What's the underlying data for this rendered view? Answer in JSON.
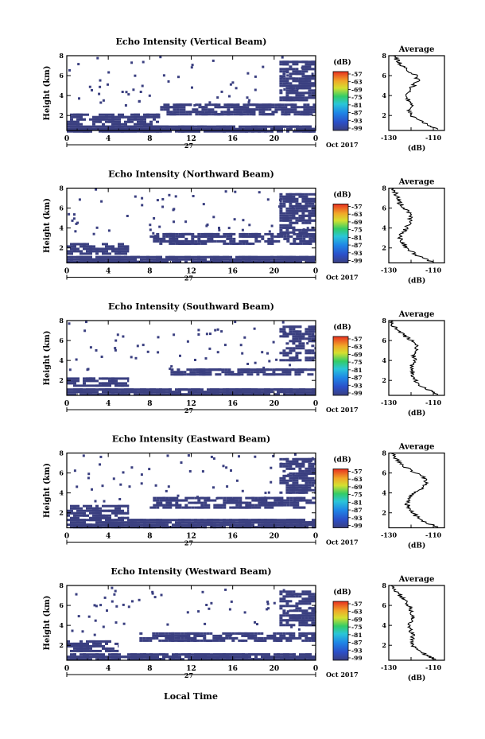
{
  "figure": {
    "xlabel_bottom": "Local Time",
    "colorbar_unit": "(dB)",
    "colorbar_ticks": [
      "-57",
      "-63",
      "-69",
      "-75",
      "-81",
      "-87",
      "-93",
      "-99"
    ],
    "avg_title": "Average",
    "avg_xlabel": "(dB)",
    "avg_xticks": [
      "-130",
      "-110"
    ],
    "date_label": "27",
    "month_label": "Oct 2017",
    "colors": {
      "high": "#e83020",
      "mid": "#33cc66",
      "low": "#3a3f80"
    }
  },
  "chart_data": [
    {
      "type": "heatmap",
      "title": "Echo Intensity (Vertical Beam)",
      "ylabel": "Height (km)",
      "x_ticks": [
        "0",
        "4",
        "8",
        "12",
        "16",
        "20",
        "0"
      ],
      "y_ticks": [
        "2",
        "4",
        "6",
        "8"
      ],
      "xlim": [
        0,
        24
      ],
      "ylim": [
        0.5,
        8
      ],
      "echo_layers_km": [
        {
          "x0": 0,
          "x1": 24,
          "y0": 0.5,
          "y1": 1.0
        },
        {
          "x0": 0,
          "x1": 9,
          "y0": 1.2,
          "y1": 2.2
        },
        {
          "x0": 9,
          "x1": 24,
          "y0": 2.2,
          "y1": 3.2
        },
        {
          "x0": 20.5,
          "x1": 24,
          "y0": 3.5,
          "y1": 7.5
        }
      ],
      "average": {
        "xlim": [
          -130,
          -105
        ],
        "ylim": [
          0.5,
          8
        ],
        "height_km": [
          0.6,
          1.0,
          1.5,
          2.0,
          2.5,
          3.0,
          3.5,
          4.0,
          4.5,
          5.0,
          5.5,
          6.0,
          6.5,
          7.0,
          7.5,
          8.0
        ],
        "value_db": [
          -108,
          -112,
          -116,
          -120,
          -121,
          -120,
          -121,
          -122,
          -121,
          -119,
          -117,
          -118,
          -121,
          -124,
          -126,
          -128
        ]
      }
    },
    {
      "type": "heatmap",
      "title": "Echo Intensity (Northward Beam)",
      "ylabel": "Height (km)",
      "x_ticks": [
        "0",
        "4",
        "8",
        "12",
        "16",
        "20",
        "0"
      ],
      "y_ticks": [
        "2",
        "4",
        "6",
        "8"
      ],
      "xlim": [
        0,
        24
      ],
      "ylim": [
        0.5,
        8
      ],
      "echo_layers_km": [
        {
          "x0": 0,
          "x1": 24,
          "y0": 0.5,
          "y1": 1.2
        },
        {
          "x0": 0,
          "x1": 6,
          "y0": 1.5,
          "y1": 2.5
        },
        {
          "x0": 8,
          "x1": 24,
          "y0": 2.5,
          "y1": 3.5
        },
        {
          "x0": 20.5,
          "x1": 24,
          "y0": 3.5,
          "y1": 7.5
        }
      ],
      "average": {
        "xlim": [
          -130,
          -105
        ],
        "ylim": [
          0.5,
          8
        ],
        "height_km": [
          0.6,
          1.0,
          1.5,
          2.0,
          2.5,
          3.0,
          3.5,
          4.0,
          4.5,
          5.0,
          5.5,
          6.0,
          6.5,
          7.0,
          7.5,
          8.0
        ],
        "value_db": [
          -110,
          -115,
          -119,
          -122,
          -124,
          -125,
          -124,
          -122,
          -121,
          -120,
          -121,
          -123,
          -125,
          -126,
          -127,
          -129
        ]
      }
    },
    {
      "type": "heatmap",
      "title": "Echo Intensity (Southward Beam)",
      "ylabel": "Height (km)",
      "x_ticks": [
        "0",
        "4",
        "8",
        "12",
        "16",
        "20",
        "0"
      ],
      "y_ticks": [
        "2",
        "4",
        "6",
        "8"
      ],
      "xlim": [
        0,
        24
      ],
      "ylim": [
        0.5,
        8
      ],
      "echo_layers_km": [
        {
          "x0": 0,
          "x1": 24,
          "y0": 0.5,
          "y1": 1.2
        },
        {
          "x0": 0,
          "x1": 6,
          "y0": 1.5,
          "y1": 2.3
        },
        {
          "x0": 10,
          "x1": 24,
          "y0": 2.5,
          "y1": 3.2
        },
        {
          "x0": 20.5,
          "x1": 24,
          "y0": 4.0,
          "y1": 7.5
        }
      ],
      "average": {
        "xlim": [
          -130,
          -105
        ],
        "ylim": [
          0.5,
          8
        ],
        "height_km": [
          0.6,
          1.0,
          1.5,
          2.0,
          2.5,
          3.0,
          3.5,
          4.0,
          4.5,
          5.0,
          5.5,
          6.0,
          6.5,
          7.0,
          7.5,
          8.0
        ],
        "value_db": [
          -108,
          -112,
          -116,
          -118,
          -120,
          -119,
          -120,
          -118,
          -119,
          -117,
          -118,
          -120,
          -123,
          -126,
          -128,
          -129
        ]
      }
    },
    {
      "type": "heatmap",
      "title": "Echo Intensity (Eastward Beam)",
      "ylabel": "Height (km)",
      "x_ticks": [
        "0",
        "4",
        "8",
        "12",
        "16",
        "20",
        "0"
      ],
      "y_ticks": [
        "2",
        "4",
        "6",
        "8"
      ],
      "xlim": [
        0,
        24
      ],
      "ylim": [
        0.5,
        8
      ],
      "echo_layers_km": [
        {
          "x0": 0,
          "x1": 24,
          "y0": 0.5,
          "y1": 1.4
        },
        {
          "x0": 0,
          "x1": 6,
          "y0": 1.5,
          "y1": 2.8
        },
        {
          "x0": 8,
          "x1": 24,
          "y0": 2.6,
          "y1": 3.6
        },
        {
          "x0": 20.5,
          "x1": 24,
          "y0": 4.0,
          "y1": 7.5
        }
      ],
      "average": {
        "xlim": [
          -130,
          -105
        ],
        "ylim": [
          0.5,
          8
        ],
        "height_km": [
          0.6,
          1.0,
          1.5,
          2.0,
          2.5,
          3.0,
          3.5,
          4.0,
          4.5,
          5.0,
          5.5,
          6.0,
          6.5,
          7.0,
          7.5,
          8.0
        ],
        "value_db": [
          -108,
          -113,
          -117,
          -119,
          -121,
          -122,
          -121,
          -118,
          -115,
          -113,
          -114,
          -118,
          -122,
          -125,
          -127,
          -129
        ]
      }
    },
    {
      "type": "heatmap",
      "title": "Echo Intensity (Westward Beam)",
      "ylabel": "Height (km)",
      "x_ticks": [
        "0",
        "4",
        "8",
        "12",
        "16",
        "20",
        "0"
      ],
      "y_ticks": [
        "2",
        "4",
        "6",
        "8"
      ],
      "xlim": [
        0,
        24
      ],
      "ylim": [
        0.5,
        8
      ],
      "echo_layers_km": [
        {
          "x0": 0,
          "x1": 24,
          "y0": 0.5,
          "y1": 1.2
        },
        {
          "x0": 0,
          "x1": 5,
          "y0": 1.5,
          "y1": 2.5
        },
        {
          "x0": 7,
          "x1": 24,
          "y0": 2.5,
          "y1": 3.3
        },
        {
          "x0": 20.5,
          "x1": 24,
          "y0": 4.0,
          "y1": 7.5
        }
      ],
      "average": {
        "xlim": [
          -130,
          -105
        ],
        "ylim": [
          0.5,
          8
        ],
        "height_km": [
          0.6,
          1.0,
          1.5,
          2.0,
          2.5,
          3.0,
          3.5,
          4.0,
          4.5,
          5.0,
          5.5,
          6.0,
          6.5,
          7.0,
          7.5,
          8.0
        ],
        "value_db": [
          -109,
          -113,
          -117,
          -119,
          -120,
          -119,
          -120,
          -121,
          -120,
          -119,
          -120,
          -121,
          -123,
          -125,
          -127,
          -129
        ]
      }
    }
  ]
}
